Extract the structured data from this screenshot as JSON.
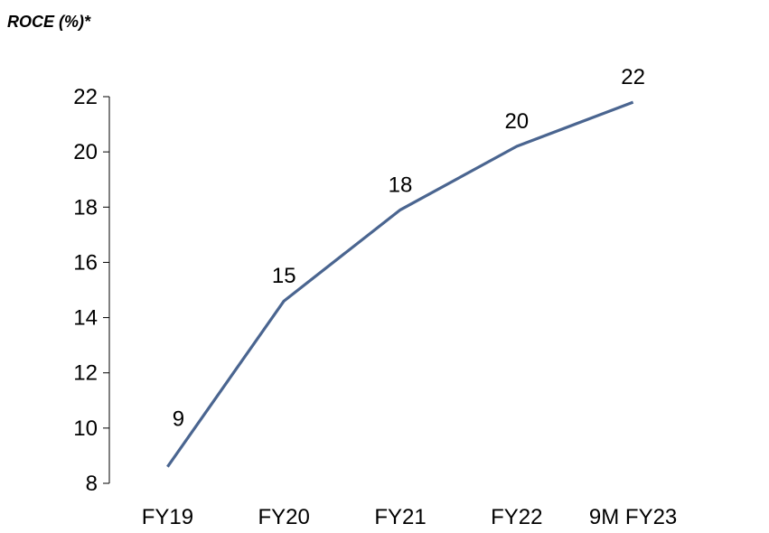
{
  "chart_data": {
    "type": "line",
    "title": "ROCE (%)*",
    "categories": [
      "FY19",
      "FY20",
      "FY21",
      "FY22",
      "9M FY23"
    ],
    "series": [
      {
        "values": [
          8.6,
          14.6,
          17.9,
          20.2,
          21.8
        ],
        "data_labels": [
          "9",
          "15",
          "18",
          "20",
          "22"
        ]
      }
    ],
    "ylim": [
      8,
      22
    ],
    "yticks": [
      "8",
      "10",
      "12",
      "14",
      "16",
      "18",
      "20",
      "22"
    ],
    "grid": false,
    "line_color": "#4a6590"
  }
}
